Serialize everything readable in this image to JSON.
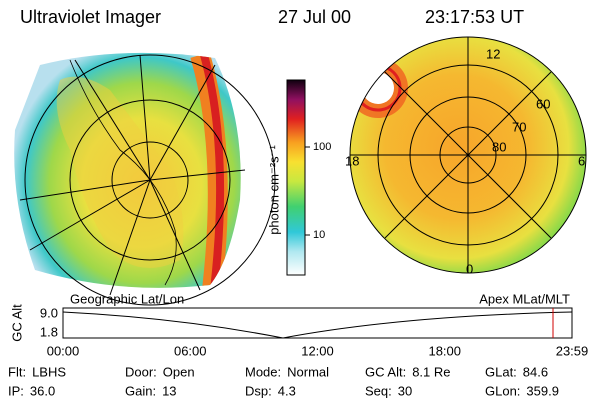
{
  "header": {
    "title": "Ultraviolet Imager",
    "date": "27 Jul 00",
    "time": "23:17:53 UT"
  },
  "colorbar": {
    "label": "photon cm⁻²s⁻¹",
    "ticks": [
      "100",
      "10"
    ]
  },
  "left_panel": {
    "label": "Geographic Lat/Lon"
  },
  "right_panel": {
    "label": "Apex MLat/MLT",
    "mlt_labels": [
      "12",
      "18",
      "6",
      "0"
    ],
    "lat_labels": [
      "60",
      "70",
      "80"
    ]
  },
  "altitude_plot": {
    "ylabel": "GC Alt",
    "yticks": [
      "9.0",
      "1.8"
    ],
    "xticks": [
      "00:00",
      "06:00",
      "12:00",
      "18:00",
      "23:59"
    ]
  },
  "footer": {
    "rows": [
      [
        {
          "label": "Flt:",
          "value": "LBHS"
        },
        {
          "label": "Door:",
          "value": "Open"
        },
        {
          "label": "Mode:",
          "value": "Normal"
        },
        {
          "label": "GC Alt:",
          "value": "8.1 Re"
        },
        {
          "label": "GLat:",
          "value": "84.6"
        }
      ],
      [
        {
          "label": "IP:",
          "value": "36.0"
        },
        {
          "label": "Gain:",
          "value": "13"
        },
        {
          "label": "Dsp:",
          "value": "4.3"
        },
        {
          "label": "Seq:",
          "value": "30"
        },
        {
          "label": "GLon:",
          "value": "359.9"
        }
      ]
    ]
  }
}
